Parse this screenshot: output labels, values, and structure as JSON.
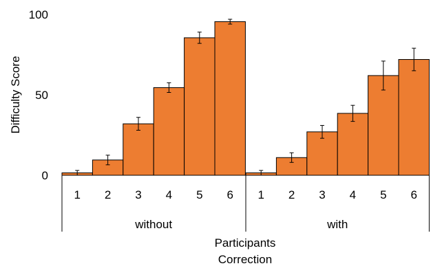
{
  "chart_data": {
    "type": "bar",
    "ylabel": "Difficulty Score",
    "ylim": [
      0,
      100
    ],
    "yticks": [
      0,
      50,
      100
    ],
    "grid": false,
    "legend": "none",
    "bar_color": "#ED7D31",
    "groups": [
      {
        "label": "without",
        "categories": [
          "1",
          "2",
          "3",
          "4",
          "5",
          "6"
        ],
        "values": [
          1.5,
          9.5,
          32,
          54.5,
          85.5,
          95.5
        ],
        "errors": [
          1.5,
          3,
          4,
          3,
          3.5,
          1.5
        ]
      },
      {
        "label": "with",
        "categories": [
          "1",
          "2",
          "3",
          "4",
          "5",
          "6"
        ],
        "values": [
          1.5,
          11,
          27,
          38.5,
          62,
          72
        ],
        "errors": [
          1.5,
          3,
          4,
          5,
          9,
          7
        ]
      }
    ],
    "xlabel_lines": [
      "Participants",
      "Correction"
    ]
  }
}
